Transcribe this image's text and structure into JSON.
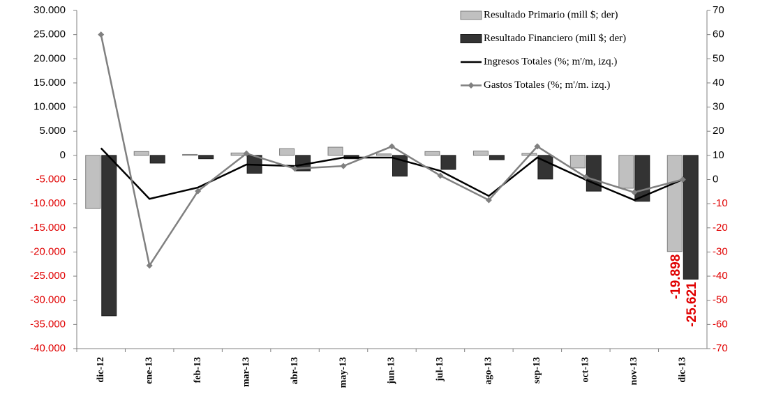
{
  "chart_data": {
    "type": "bar",
    "categories": [
      "dic-12",
      "ene-13",
      "feb-13",
      "mar-13",
      "abr-13",
      "may-13",
      "jun-13",
      "jul-13",
      "ago-13",
      "sep-13",
      "oct-13",
      "nov-13",
      "dic-13"
    ],
    "series": [
      {
        "name": "Resultado Primario  (mill $; der)",
        "type": "bar",
        "color": "#c0c0c0",
        "stroke": "#7f7f7f",
        "values": [
          -11000,
          800,
          200,
          500,
          1400,
          1700,
          300,
          800,
          900,
          400,
          -2600,
          -6800,
          -19898
        ],
        "value_labels": [
          null,
          null,
          null,
          null,
          null,
          null,
          null,
          null,
          null,
          null,
          null,
          null,
          "-19.898"
        ]
      },
      {
        "name": "Resultado Financiero (mill $; der)",
        "type": "bar",
        "color": "#333333",
        "stroke": "#1a1a1a",
        "values": [
          -33200,
          -1600,
          -700,
          -3700,
          -3200,
          -700,
          -4300,
          -2900,
          -900,
          -4900,
          -7400,
          -9500,
          -25621
        ],
        "value_labels": [
          null,
          null,
          null,
          null,
          null,
          null,
          null,
          null,
          null,
          null,
          null,
          null,
          "-25.621"
        ]
      },
      {
        "name": "Ingresos Totales (%; m'/m, izq.)",
        "type": "line",
        "axis": "y2",
        "color": "#000000",
        "marker": false,
        "values": [
          13,
          -8,
          -3.3,
          6.2,
          5.6,
          9.1,
          9.1,
          3.6,
          -6.8,
          9.1,
          -0.1,
          -8.5,
          0
        ]
      },
      {
        "name": "Gastos Totales (%; m'/m. izq.)",
        "type": "line",
        "axis": "y2",
        "color": "#808080",
        "marker": true,
        "values": [
          60,
          -35.6,
          -4.8,
          10.8,
          4.5,
          5.6,
          13.7,
          1.6,
          -8.5,
          13.7,
          1,
          -5.3,
          0
        ]
      }
    ],
    "ylim": [
      -40000,
      30000
    ],
    "yticks": [
      {
        "value": -40000,
        "label": "-40.000"
      },
      {
        "value": -35000,
        "label": "-35.000"
      },
      {
        "value": -30000,
        "label": "-30.000"
      },
      {
        "value": -25000,
        "label": "-25.000"
      },
      {
        "value": -20000,
        "label": "-20.000"
      },
      {
        "value": -15000,
        "label": "-15.000"
      },
      {
        "value": -10000,
        "label": "-10.000"
      },
      {
        "value": -5000,
        "label": "-5.000"
      },
      0,
      {
        "value": 5000,
        "label": "5.000"
      },
      {
        "value": 10000,
        "label": "10.000"
      },
      {
        "value": 15000,
        "label": "15.000"
      },
      {
        "value": 20000,
        "label": "20.000"
      },
      {
        "value": 25000,
        "label": "25.000"
      },
      {
        "value": 30000,
        "label": "30.000"
      }
    ],
    "y2lim": [
      -70,
      70
    ],
    "y2ticks": [
      -70,
      -60,
      -50,
      -40,
      -30,
      -20,
      -10,
      0,
      10,
      20,
      30,
      40,
      50,
      60,
      70
    ],
    "negative_tick_color": "#e00000",
    "value_label_color": "#e00000",
    "legend": "top-right",
    "grid": false
  }
}
